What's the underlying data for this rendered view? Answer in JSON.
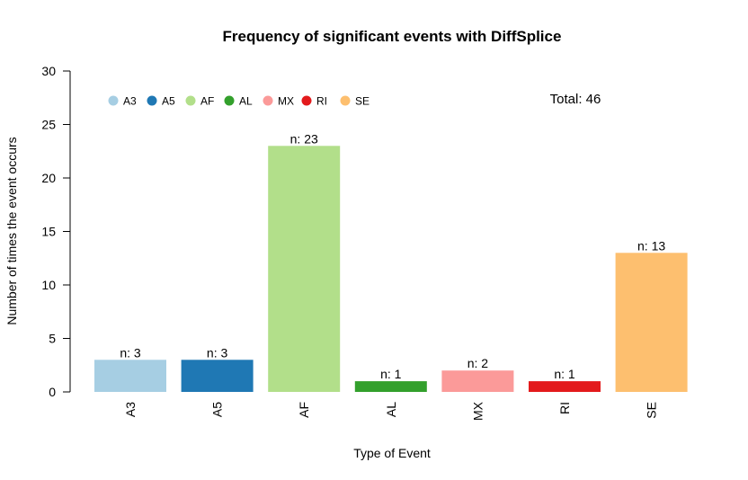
{
  "chart_data": {
    "type": "bar",
    "title": "Frequency of significant events with DiffSplice",
    "xlabel": "Type of Event",
    "ylabel": "Number of times the event occurs",
    "ylim": [
      0,
      30
    ],
    "yticks": [
      0,
      5,
      10,
      15,
      20,
      25,
      30
    ],
    "categories": [
      "A3",
      "A5",
      "AF",
      "AL",
      "MX",
      "RI",
      "SE"
    ],
    "values": [
      3,
      3,
      23,
      1,
      2,
      1,
      13
    ],
    "bar_labels": [
      "n: 3",
      "n: 3",
      "n: 23",
      "n: 1",
      "n: 2",
      "n: 1",
      "n: 13"
    ],
    "colors": [
      "#a6cee3",
      "#1f78b4",
      "#b2df8a",
      "#33a02c",
      "#fb9a99",
      "#e31a1c",
      "#fdbf6f"
    ],
    "legend": {
      "placement": "top-left",
      "entries": [
        "A3",
        "A5",
        "AF",
        "AL",
        "MX",
        "RI",
        "SE"
      ]
    },
    "annotation": "Total: 46",
    "grid": false
  }
}
